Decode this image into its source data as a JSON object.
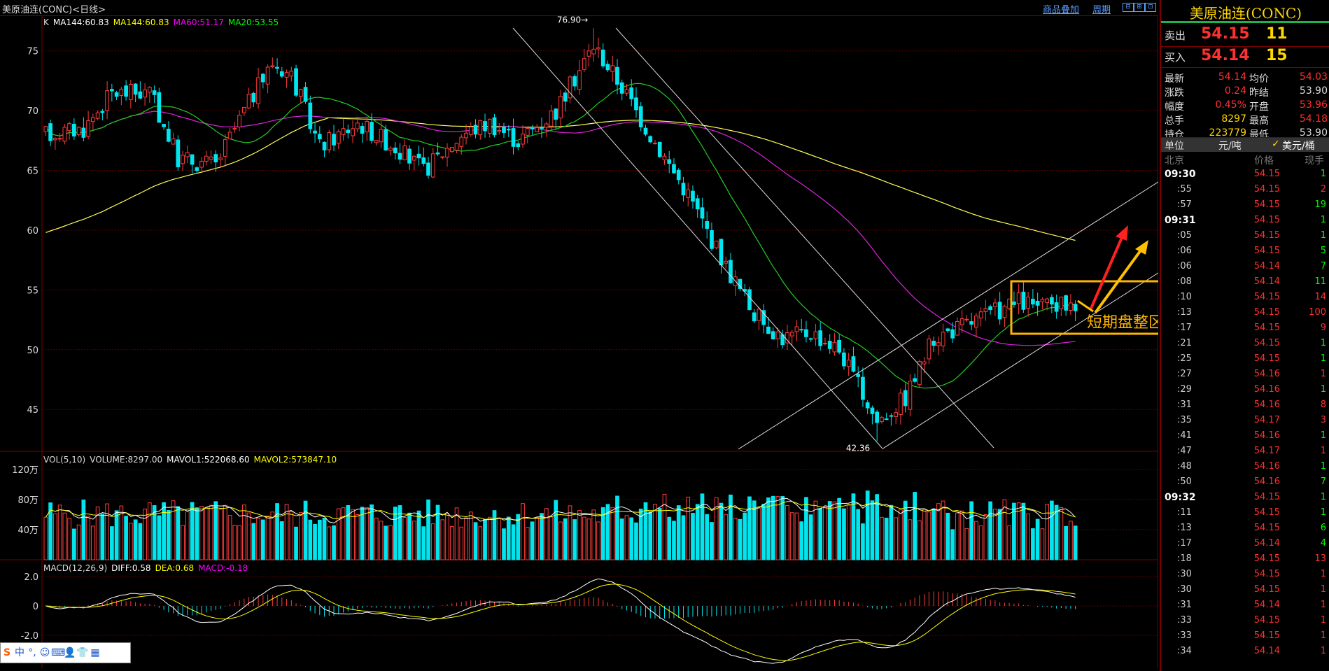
{
  "topbar": {
    "title": "美原油连(CONC)<日线>",
    "link_overlay": "商品叠加",
    "link_period": "周期",
    "win_buttons": [
      "⊟",
      "⊞",
      "⊡"
    ]
  },
  "price_chart": {
    "legend": [
      {
        "text": "K",
        "color": "#dddddd"
      },
      {
        "text": "MA144:60.83",
        "color": "#ffffff"
      },
      {
        "text": "MA144:60.83",
        "color": "#ffff00"
      },
      {
        "text": "MA60:51.17",
        "color": "#ff00ff"
      },
      {
        "text": "MA20:53.55",
        "color": "#00ff00"
      }
    ],
    "y_ticks": [
      "75",
      "70",
      "65",
      "60",
      "55",
      "50",
      "45"
    ],
    "y_range": [
      41.5,
      77.5
    ],
    "high_label": "76.90",
    "low_label": "42.36",
    "annotation_text": "短期盘整区间",
    "colors": {
      "up": "#ff3c3c",
      "down": "#00e5ee",
      "box": "#ffb400",
      "arrow_red": "#ff2020",
      "arrow_gold": "#ffc000"
    }
  },
  "volume_chart": {
    "legend": [
      {
        "text": "VOL(5,10)",
        "color": "#dddddd"
      },
      {
        "text": "VOLUME:8297.00",
        "color": "#dddddd"
      },
      {
        "text": "MAVOL1:522068.60",
        "color": "#ffffff"
      },
      {
        "text": "MAVOL2:573847.10",
        "color": "#ffff00"
      }
    ],
    "y_ticks": [
      "120万",
      "80万",
      "40万"
    ]
  },
  "macd_chart": {
    "legend": [
      {
        "text": "MACD(12,26,9)",
        "color": "#dddddd"
      },
      {
        "text": "DIFF:0.58",
        "color": "#ffffff"
      },
      {
        "text": "DEA:0.68",
        "color": "#ffff00"
      },
      {
        "text": "MACD:-0.18",
        "color": "#ff00ff"
      }
    ],
    "y_ticks": [
      "2.0",
      "0",
      "-2.0"
    ]
  },
  "panel": {
    "name": "美原油连(CONC)",
    "sell": {
      "label": "卖出",
      "price": "54.15",
      "vol": "11"
    },
    "buy": {
      "label": "买入",
      "price": "54.14",
      "vol": "15"
    },
    "stats": [
      {
        "l1": "最新",
        "v1": "54.14",
        "c1": "#ff3030",
        "l2": "均价",
        "v2": "54.03",
        "c2": "#ff3030"
      },
      {
        "l1": "涨跌",
        "v1": "0.24",
        "c1": "#ff3030",
        "l2": "昨结",
        "v2": "53.90",
        "c2": "#dddddd"
      },
      {
        "l1": "幅度",
        "v1": "0.45%",
        "c1": "#ff3030",
        "l2": "开盘",
        "v2": "53.96",
        "c2": "#ff3030"
      },
      {
        "l1": "总手",
        "v1": "8297",
        "c1": "#ffd700",
        "l2": "最高",
        "v2": "54.18",
        "c2": "#ff3030"
      },
      {
        "l1": "持仓",
        "v1": "223779",
        "c1": "#ffd700",
        "l2": "最低",
        "v2": "53.90",
        "c2": "#dddddd"
      }
    ],
    "unit": {
      "label": "单位",
      "opt1": "元/吨",
      "check": "✓",
      "opt2": "美元/桶"
    },
    "table_head": {
      "time": "北京",
      "price": "价格",
      "vol": "现手"
    },
    "ticks": [
      {
        "t": "09:30",
        "bold": true,
        "p": "54.15",
        "v": "1",
        "vc": "#00ff00"
      },
      {
        "t": ":55",
        "p": "54.15",
        "v": "2",
        "vc": "#ff3030"
      },
      {
        "t": ":57",
        "p": "54.15",
        "v": "19",
        "vc": "#00ff00"
      },
      {
        "t": "09:31",
        "bold": true,
        "p": "54.15",
        "v": "1",
        "vc": "#00ff00"
      },
      {
        "t": ":05",
        "p": "54.15",
        "v": "1",
        "vc": "#00ff00"
      },
      {
        "t": ":06",
        "p": "54.15",
        "v": "5",
        "vc": "#00ff00"
      },
      {
        "t": ":06",
        "p": "54.14",
        "v": "7",
        "vc": "#00ff00"
      },
      {
        "t": ":08",
        "p": "54.14",
        "v": "11",
        "vc": "#00ff00"
      },
      {
        "t": ":10",
        "p": "54.15",
        "v": "14",
        "vc": "#ff3030"
      },
      {
        "t": ":13",
        "p": "54.15",
        "v": "100",
        "vc": "#ff3030"
      },
      {
        "t": ":17",
        "p": "54.15",
        "v": "9",
        "vc": "#ff3030"
      },
      {
        "t": ":21",
        "p": "54.15",
        "v": "1",
        "vc": "#00ff00"
      },
      {
        "t": ":25",
        "p": "54.15",
        "v": "1",
        "vc": "#00ff00"
      },
      {
        "t": ":27",
        "p": "54.16",
        "v": "1",
        "vc": "#ff3030"
      },
      {
        "t": ":29",
        "p": "54.16",
        "v": "1",
        "vc": "#00ff00"
      },
      {
        "t": ":31",
        "p": "54.16",
        "v": "8",
        "vc": "#ff3030"
      },
      {
        "t": ":35",
        "p": "54.17",
        "v": "3",
        "vc": "#ff3030"
      },
      {
        "t": ":41",
        "p": "54.16",
        "v": "1",
        "vc": "#00ff00"
      },
      {
        "t": ":47",
        "p": "54.17",
        "v": "1",
        "vc": "#ff3030"
      },
      {
        "t": ":48",
        "p": "54.16",
        "v": "1",
        "vc": "#00ff00"
      },
      {
        "t": ":50",
        "p": "54.16",
        "v": "7",
        "vc": "#00ff00"
      },
      {
        "t": "09:32",
        "bold": true,
        "p": "54.15",
        "v": "1",
        "vc": "#00ff00"
      },
      {
        "t": ":11",
        "p": "54.15",
        "v": "1",
        "vc": "#00ff00"
      },
      {
        "t": ":13",
        "p": "54.15",
        "v": "6",
        "vc": "#00ff00"
      },
      {
        "t": ":17",
        "p": "54.14",
        "v": "4",
        "vc": "#00ff00"
      },
      {
        "t": ":18",
        "p": "54.15",
        "v": "13",
        "vc": "#ff3030"
      },
      {
        "t": ":30",
        "p": "54.15",
        "v": "1",
        "vc": "#ff3030"
      },
      {
        "t": ":30",
        "p": "54.15",
        "v": "1",
        "vc": "#ff3030"
      },
      {
        "t": ":31",
        "p": "54.14",
        "v": "1",
        "vc": "#ff3030"
      },
      {
        "t": ":33",
        "p": "54.15",
        "v": "1",
        "vc": "#ff3030"
      },
      {
        "t": ":33",
        "p": "54.15",
        "v": "1",
        "vc": "#ff3030"
      },
      {
        "t": ":34",
        "p": "54.14",
        "v": "1",
        "vc": "#ff3030"
      }
    ]
  },
  "ime": {
    "items": [
      "S",
      "中",
      "°,",
      "☺",
      "⌨",
      "👤",
      "👕",
      "▦"
    ]
  },
  "chart_data": {
    "type": "candlestick",
    "title": "美原油连(CONC)<日线>",
    "ylim": [
      41.5,
      77.5
    ],
    "anchors": [
      {
        "i": 0,
        "v": 68
      },
      {
        "i": 8,
        "v": 68.5
      },
      {
        "i": 14,
        "v": 71.5
      },
      {
        "i": 22,
        "v": 71.5
      },
      {
        "i": 28,
        "v": 66
      },
      {
        "i": 36,
        "v": 65.5
      },
      {
        "i": 42,
        "v": 70
      },
      {
        "i": 48,
        "v": 74
      },
      {
        "i": 52,
        "v": 73
      },
      {
        "i": 58,
        "v": 67
      },
      {
        "i": 66,
        "v": 69
      },
      {
        "i": 74,
        "v": 67
      },
      {
        "i": 80,
        "v": 65
      },
      {
        "i": 88,
        "v": 68
      },
      {
        "i": 94,
        "v": 69
      },
      {
        "i": 100,
        "v": 67.5
      },
      {
        "i": 108,
        "v": 70
      },
      {
        "i": 116,
        "v": 75.5
      },
      {
        "i": 122,
        "v": 72
      },
      {
        "i": 128,
        "v": 68
      },
      {
        "i": 136,
        "v": 63
      },
      {
        "i": 144,
        "v": 57
      },
      {
        "i": 150,
        "v": 53
      },
      {
        "i": 156,
        "v": 51
      },
      {
        "i": 162,
        "v": 51.5
      },
      {
        "i": 168,
        "v": 50
      },
      {
        "i": 172,
        "v": 47
      },
      {
        "i": 176,
        "v": 44
      },
      {
        "i": 182,
        "v": 46
      },
      {
        "i": 188,
        "v": 51
      },
      {
        "i": 194,
        "v": 52
      },
      {
        "i": 200,
        "v": 53
      },
      {
        "i": 206,
        "v": 54
      },
      {
        "i": 212,
        "v": 53.5
      },
      {
        "i": 218,
        "v": 54
      }
    ],
    "count": 219,
    "high": 76.9,
    "low": 42.36
  }
}
